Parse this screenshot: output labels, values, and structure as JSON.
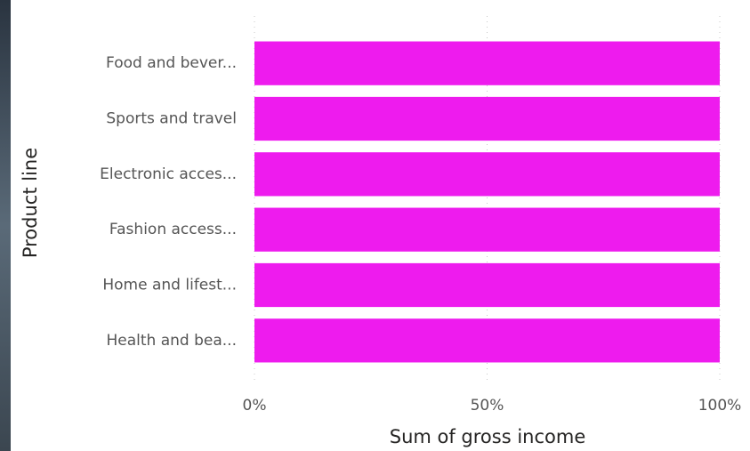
{
  "chart_data": {
    "type": "bar",
    "orientation": "horizontal",
    "x_label": "Sum of gross income",
    "y_label": "Product line",
    "categories": [
      "Food and bever...",
      "Sports and travel",
      "Electronic acces...",
      "Fashion access...",
      "Home and lifest...",
      "Health and bea..."
    ],
    "values": [
      100,
      100,
      100,
      100,
      100,
      100
    ],
    "color": "#ee1bee",
    "xlim": [
      0,
      100
    ],
    "xticks": [
      {
        "value": 0,
        "label": "0%"
      },
      {
        "value": 50,
        "label": "50%"
      },
      {
        "value": 100,
        "label": "100%"
      }
    ],
    "grid": true
  }
}
